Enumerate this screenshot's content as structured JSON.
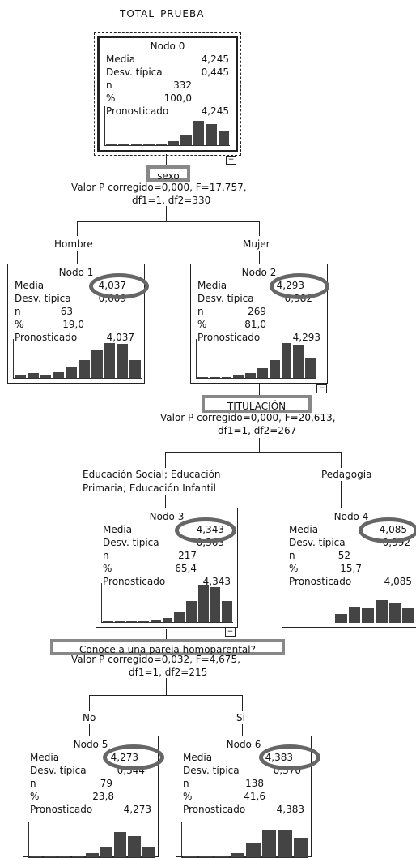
{
  "target": "TOTAL_PRUEBA",
  "labels": {
    "media": "Media",
    "desv": "Desv. típica",
    "n": "n",
    "pct": "%",
    "pron": "Pronosticado"
  },
  "nodes": [
    {
      "name": "Nodo 0",
      "media": "4,245",
      "desv": "0,445",
      "n": "332",
      "pct": "100,0",
      "pron": "4,245",
      "hist": [
        0.02,
        0.02,
        0.02,
        0.02,
        0.05,
        0.1,
        0.25,
        0.62,
        0.55,
        0.35
      ]
    },
    {
      "name": "Nodo 1",
      "media": "4,037",
      "desv": "0,609",
      "n": "63",
      "pct": "19,0",
      "pron": "4,037",
      "hist": [
        0.08,
        0.12,
        0.08,
        0.15,
        0.3,
        0.45,
        0.7,
        0.9,
        0.88,
        0.45
      ]
    },
    {
      "name": "Nodo 2",
      "media": "4,293",
      "desv": "0,382",
      "n": "269",
      "pct": "81,0",
      "pron": "4,293",
      "hist": [
        0.02,
        0.02,
        0.02,
        0.06,
        0.12,
        0.25,
        0.45,
        0.9,
        0.85,
        0.5
      ]
    },
    {
      "name": "Nodo 3",
      "media": "4,343",
      "desv": "0,363",
      "n": "217",
      "pct": "65,4",
      "pron": "4,343",
      "hist": [
        0,
        0.02,
        0.02,
        0.02,
        0.04,
        0.1,
        0.25,
        0.55,
        0.95,
        0.9,
        0.55
      ]
    },
    {
      "name": "Nodo 4",
      "media": "4,085",
      "desv": "0,392",
      "n": "52",
      "pct": "15,7",
      "pron": "4,085",
      "hist": [
        0.22,
        0.4,
        0.38,
        0.58,
        0.5,
        0.38
      ]
    },
    {
      "name": "Nodo 5",
      "media": "4,273",
      "desv": "0,344",
      "n": "79",
      "pct": "23,8",
      "pron": "4,273",
      "hist": [
        0,
        0.02,
        0.02,
        0.04,
        0.12,
        0.28,
        0.7,
        0.6,
        0.3
      ]
    },
    {
      "name": "Nodo 6",
      "media": "4,383",
      "desv": "0,370",
      "n": "138",
      "pct": "41,6",
      "pron": "4,383",
      "hist": [
        0.02,
        0.02,
        0.04,
        0.12,
        0.38,
        0.75,
        0.78,
        0.55
      ]
    }
  ],
  "splits": [
    {
      "variable": "sexo",
      "stat1": "Valor P corregido=0,000, F=17,757,",
      "stat2": "df1=1, df2=330",
      "left": "Hombre",
      "right": "Mujer"
    },
    {
      "variable": "TITULACIÓN",
      "stat1": "Valor P corregido=0,000, F=20,613,",
      "stat2": "df1=1, df2=267",
      "left1": "Educación Social; Educación",
      "left2": "Primaria; Educación Infantil",
      "right": "Pedagogía"
    },
    {
      "variable": "Conoce a una pareja homoparental?",
      "stat1": "Valor P corregido=0,032, F=4,675,",
      "stat2": "df1=1, df2=215",
      "left": "No",
      "right": "Si"
    }
  ],
  "toggle_symbol": "−"
}
